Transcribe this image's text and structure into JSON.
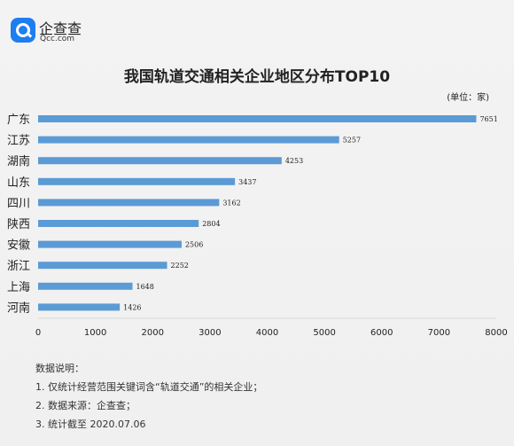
{
  "logo": {
    "name_cn": "企查查",
    "name_en": "Qcc.com"
  },
  "chart_data": {
    "type": "bar",
    "orientation": "horizontal",
    "title": "我国轨道交通相关企业地区分布TOP10",
    "unit_label": "(单位：家)",
    "categories": [
      "广东",
      "江苏",
      "湖南",
      "山东",
      "四川",
      "陕西",
      "安徽",
      "浙江",
      "上海",
      "河南"
    ],
    "values": [
      7651,
      5257,
      4253,
      3437,
      3162,
      2804,
      2506,
      2252,
      1648,
      1426
    ],
    "xlim": [
      0,
      8000
    ],
    "xticks": [
      0,
      1000,
      2000,
      3000,
      4000,
      5000,
      6000,
      7000,
      8000
    ],
    "bar_color": "#5b9bd5",
    "grid": false
  },
  "notes": {
    "heading": "数据说明：",
    "items": [
      "1. 仅统计经营范围关键词含“轨道交通”的相关企业；",
      "2. 数据来源：企查查；",
      "3. 统计截至 2020.07.06"
    ]
  }
}
